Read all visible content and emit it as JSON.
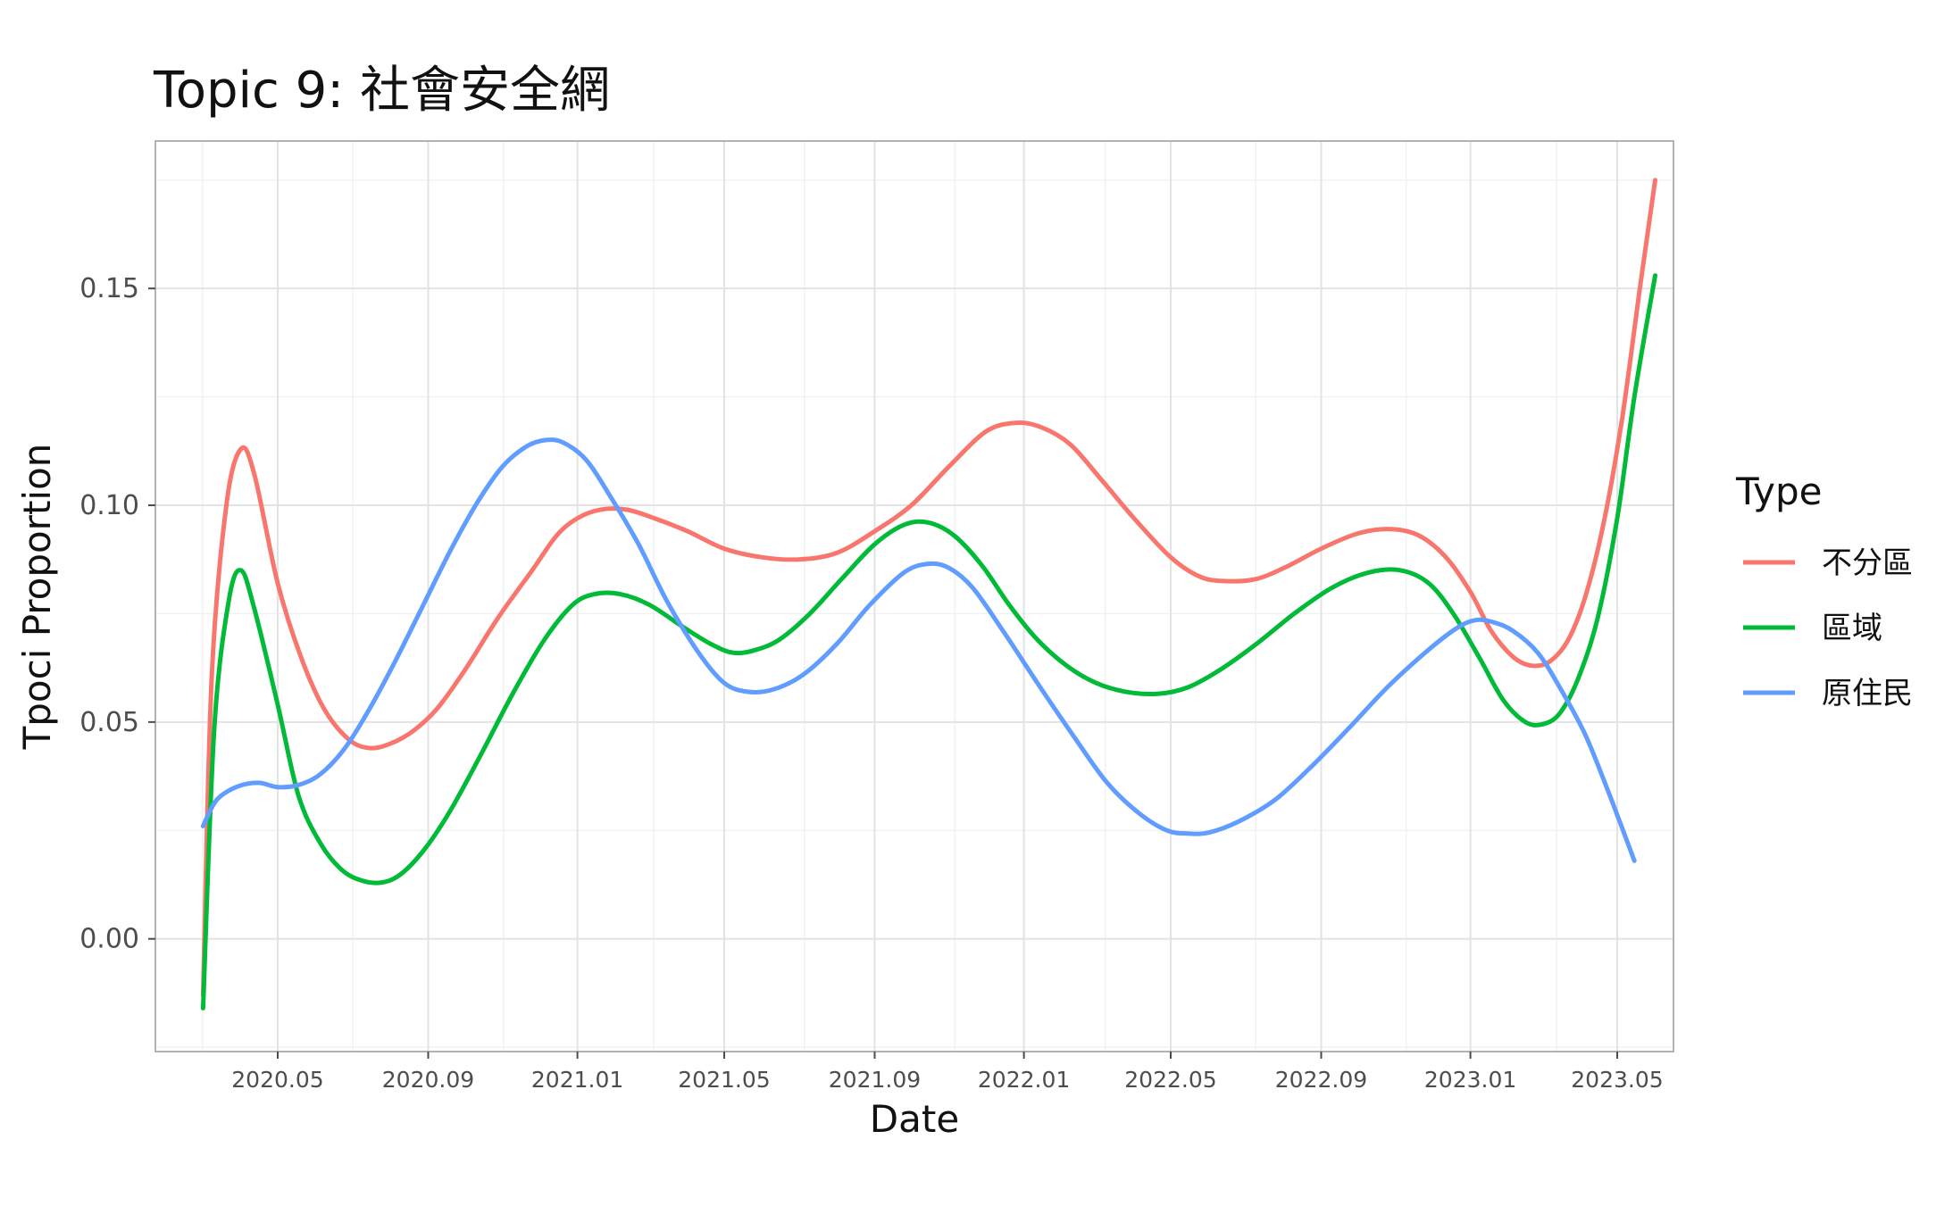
{
  "chart_data": {
    "type": "line",
    "title": "Topic 9: 社會安全網",
    "xlabel": "Date",
    "ylabel": "Tpoci Proportion",
    "legend_title": "Type",
    "legend_position": "right",
    "grid": true,
    "x_axis_type": "date",
    "xlim": [
      "2020-01-22",
      "2023-06-16"
    ],
    "ylim": [
      -0.026,
      0.184
    ],
    "x_ticks": [
      "2020-05-01",
      "2020-09-01",
      "2021-01-01",
      "2021-05-01",
      "2021-09-01",
      "2022-01-01",
      "2022-05-01",
      "2022-09-01",
      "2023-01-01",
      "2023-05-01"
    ],
    "x_tick_labels": [
      "2020.05",
      "2020.09",
      "2021.01",
      "2021.05",
      "2021.09",
      "2022.01",
      "2022.05",
      "2022.09",
      "2023.01",
      "2023.05"
    ],
    "y_ticks": [
      0.0,
      0.05,
      0.1,
      0.15
    ],
    "y_tick_labels": [
      "0.00",
      "0.05",
      "0.10",
      "0.15"
    ],
    "series": [
      {
        "name": "不分區",
        "color": "#F8766D",
        "points": [
          [
            "2020-03-01",
            -0.013
          ],
          [
            "2020-03-08",
            0.06
          ],
          [
            "2020-03-20",
            0.1
          ],
          [
            "2020-04-01",
            0.113
          ],
          [
            "2020-04-12",
            0.107
          ],
          [
            "2020-05-01",
            0.082
          ],
          [
            "2020-05-20",
            0.065
          ],
          [
            "2020-06-08",
            0.053
          ],
          [
            "2020-06-28",
            0.046
          ],
          [
            "2020-07-15",
            0.044
          ],
          [
            "2020-08-01",
            0.045
          ],
          [
            "2020-08-20",
            0.048
          ],
          [
            "2020-09-08",
            0.053
          ],
          [
            "2020-10-01",
            0.062
          ],
          [
            "2020-10-28",
            0.074
          ],
          [
            "2020-11-25",
            0.085
          ],
          [
            "2020-12-15",
            0.093
          ],
          [
            "2021-01-01",
            0.097
          ],
          [
            "2021-01-20",
            0.099
          ],
          [
            "2021-02-10",
            0.099
          ],
          [
            "2021-03-05",
            0.097
          ],
          [
            "2021-04-01",
            0.094
          ],
          [
            "2021-05-01",
            0.09
          ],
          [
            "2021-06-01",
            0.088
          ],
          [
            "2021-07-01",
            0.0875
          ],
          [
            "2021-08-01",
            0.089
          ],
          [
            "2021-09-01",
            0.094
          ],
          [
            "2021-10-01",
            0.1
          ],
          [
            "2021-11-01",
            0.109
          ],
          [
            "2021-12-01",
            0.117
          ],
          [
            "2021-12-25",
            0.119
          ],
          [
            "2022-01-15",
            0.118
          ],
          [
            "2022-02-08",
            0.114
          ],
          [
            "2022-03-05",
            0.106
          ],
          [
            "2022-04-01",
            0.097
          ],
          [
            "2022-05-01",
            0.088
          ],
          [
            "2022-05-25",
            0.0835
          ],
          [
            "2022-06-15",
            0.0825
          ],
          [
            "2022-07-10",
            0.083
          ],
          [
            "2022-08-05",
            0.086
          ],
          [
            "2022-09-01",
            0.09
          ],
          [
            "2022-10-01",
            0.0935
          ],
          [
            "2022-10-28",
            0.0945
          ],
          [
            "2022-11-20",
            0.093
          ],
          [
            "2022-12-12",
            0.088
          ],
          [
            "2023-01-01",
            0.08
          ],
          [
            "2023-01-18",
            0.071
          ],
          [
            "2023-02-05",
            0.065
          ],
          [
            "2023-02-20",
            0.063
          ],
          [
            "2023-03-07",
            0.064
          ],
          [
            "2023-03-22",
            0.069
          ],
          [
            "2023-04-05",
            0.079
          ],
          [
            "2023-04-20",
            0.096
          ],
          [
            "2023-05-05",
            0.12
          ],
          [
            "2023-05-20",
            0.151
          ],
          [
            "2023-06-01",
            0.175
          ]
        ]
      },
      {
        "name": "區域",
        "color": "#00BA38",
        "points": [
          [
            "2020-03-01",
            -0.016
          ],
          [
            "2020-03-10",
            0.048
          ],
          [
            "2020-03-22",
            0.078
          ],
          [
            "2020-04-01",
            0.085
          ],
          [
            "2020-04-12",
            0.076
          ],
          [
            "2020-05-01",
            0.054
          ],
          [
            "2020-05-18",
            0.033
          ],
          [
            "2020-06-05",
            0.022
          ],
          [
            "2020-06-22",
            0.016
          ],
          [
            "2020-07-08",
            0.0135
          ],
          [
            "2020-07-25",
            0.013
          ],
          [
            "2020-08-10",
            0.015
          ],
          [
            "2020-08-30",
            0.021
          ],
          [
            "2020-09-20",
            0.03
          ],
          [
            "2020-10-15",
            0.043
          ],
          [
            "2020-11-10",
            0.057
          ],
          [
            "2020-12-05",
            0.069
          ],
          [
            "2020-12-28",
            0.077
          ],
          [
            "2021-01-15",
            0.0795
          ],
          [
            "2021-02-05",
            0.0795
          ],
          [
            "2021-03-01",
            0.077
          ],
          [
            "2021-03-28",
            0.072
          ],
          [
            "2021-04-20",
            0.068
          ],
          [
            "2021-05-08",
            0.066
          ],
          [
            "2021-05-25",
            0.0665
          ],
          [
            "2021-06-15",
            0.069
          ],
          [
            "2021-07-10",
            0.075
          ],
          [
            "2021-08-05",
            0.083
          ],
          [
            "2021-09-01",
            0.091
          ],
          [
            "2021-09-25",
            0.0955
          ],
          [
            "2021-10-15",
            0.096
          ],
          [
            "2021-11-05",
            0.093
          ],
          [
            "2021-11-28",
            0.086
          ],
          [
            "2021-12-20",
            0.077
          ],
          [
            "2022-01-12",
            0.069
          ],
          [
            "2022-02-05",
            0.063
          ],
          [
            "2022-03-01",
            0.059
          ],
          [
            "2022-03-25",
            0.057
          ],
          [
            "2022-04-20",
            0.0565
          ],
          [
            "2022-05-15",
            0.058
          ],
          [
            "2022-06-10",
            0.062
          ],
          [
            "2022-07-10",
            0.068
          ],
          [
            "2022-08-10",
            0.075
          ],
          [
            "2022-09-10",
            0.081
          ],
          [
            "2022-10-10",
            0.0845
          ],
          [
            "2022-11-05",
            0.085
          ],
          [
            "2022-11-28",
            0.082
          ],
          [
            "2022-12-18",
            0.075
          ],
          [
            "2023-01-08",
            0.065
          ],
          [
            "2023-01-28",
            0.055
          ],
          [
            "2023-02-15",
            0.05
          ],
          [
            "2023-03-01",
            0.0495
          ],
          [
            "2023-03-15",
            0.052
          ],
          [
            "2023-03-30",
            0.06
          ],
          [
            "2023-04-15",
            0.074
          ],
          [
            "2023-05-01",
            0.097
          ],
          [
            "2023-05-15",
            0.125
          ],
          [
            "2023-06-01",
            0.153
          ]
        ]
      },
      {
        "name": "原住民",
        "color": "#619CFF",
        "points": [
          [
            "2020-03-01",
            0.026
          ],
          [
            "2020-03-12",
            0.032
          ],
          [
            "2020-03-28",
            0.035
          ],
          [
            "2020-04-15",
            0.036
          ],
          [
            "2020-05-01",
            0.035
          ],
          [
            "2020-05-18",
            0.0355
          ],
          [
            "2020-06-05",
            0.038
          ],
          [
            "2020-06-25",
            0.044
          ],
          [
            "2020-07-15",
            0.053
          ],
          [
            "2020-08-05",
            0.064
          ],
          [
            "2020-08-28",
            0.077
          ],
          [
            "2020-09-20",
            0.09
          ],
          [
            "2020-10-12",
            0.101
          ],
          [
            "2020-11-01",
            0.109
          ],
          [
            "2020-11-20",
            0.1135
          ],
          [
            "2020-12-05",
            0.115
          ],
          [
            "2020-12-20",
            0.1145
          ],
          [
            "2021-01-08",
            0.1105
          ],
          [
            "2021-01-28",
            0.102
          ],
          [
            "2021-02-20",
            0.091
          ],
          [
            "2021-03-15",
            0.078
          ],
          [
            "2021-04-10",
            0.066
          ],
          [
            "2021-05-01",
            0.059
          ],
          [
            "2021-05-20",
            0.057
          ],
          [
            "2021-06-10",
            0.0575
          ],
          [
            "2021-07-05",
            0.061
          ],
          [
            "2021-08-01",
            0.068
          ],
          [
            "2021-08-28",
            0.077
          ],
          [
            "2021-09-25",
            0.0845
          ],
          [
            "2021-10-15",
            0.0865
          ],
          [
            "2021-11-01",
            0.0855
          ],
          [
            "2021-11-20",
            0.081
          ],
          [
            "2021-12-15",
            0.071
          ],
          [
            "2022-01-12",
            0.059
          ],
          [
            "2022-02-10",
            0.047
          ],
          [
            "2022-03-10",
            0.036
          ],
          [
            "2022-04-05",
            0.029
          ],
          [
            "2022-04-28",
            0.025
          ],
          [
            "2022-05-15",
            0.0243
          ],
          [
            "2022-06-01",
            0.0245
          ],
          [
            "2022-06-25",
            0.027
          ],
          [
            "2022-07-25",
            0.032
          ],
          [
            "2022-08-25",
            0.04
          ],
          [
            "2022-09-25",
            0.049
          ],
          [
            "2022-10-25",
            0.058
          ],
          [
            "2022-11-25",
            0.066
          ],
          [
            "2022-12-20",
            0.0715
          ],
          [
            "2023-01-05",
            0.0735
          ],
          [
            "2023-01-20",
            0.073
          ],
          [
            "2023-02-05",
            0.071
          ],
          [
            "2023-02-25",
            0.066
          ],
          [
            "2023-03-15",
            0.058
          ],
          [
            "2023-04-05",
            0.047
          ],
          [
            "2023-04-25",
            0.033
          ],
          [
            "2023-05-15",
            0.018
          ]
        ]
      }
    ]
  }
}
